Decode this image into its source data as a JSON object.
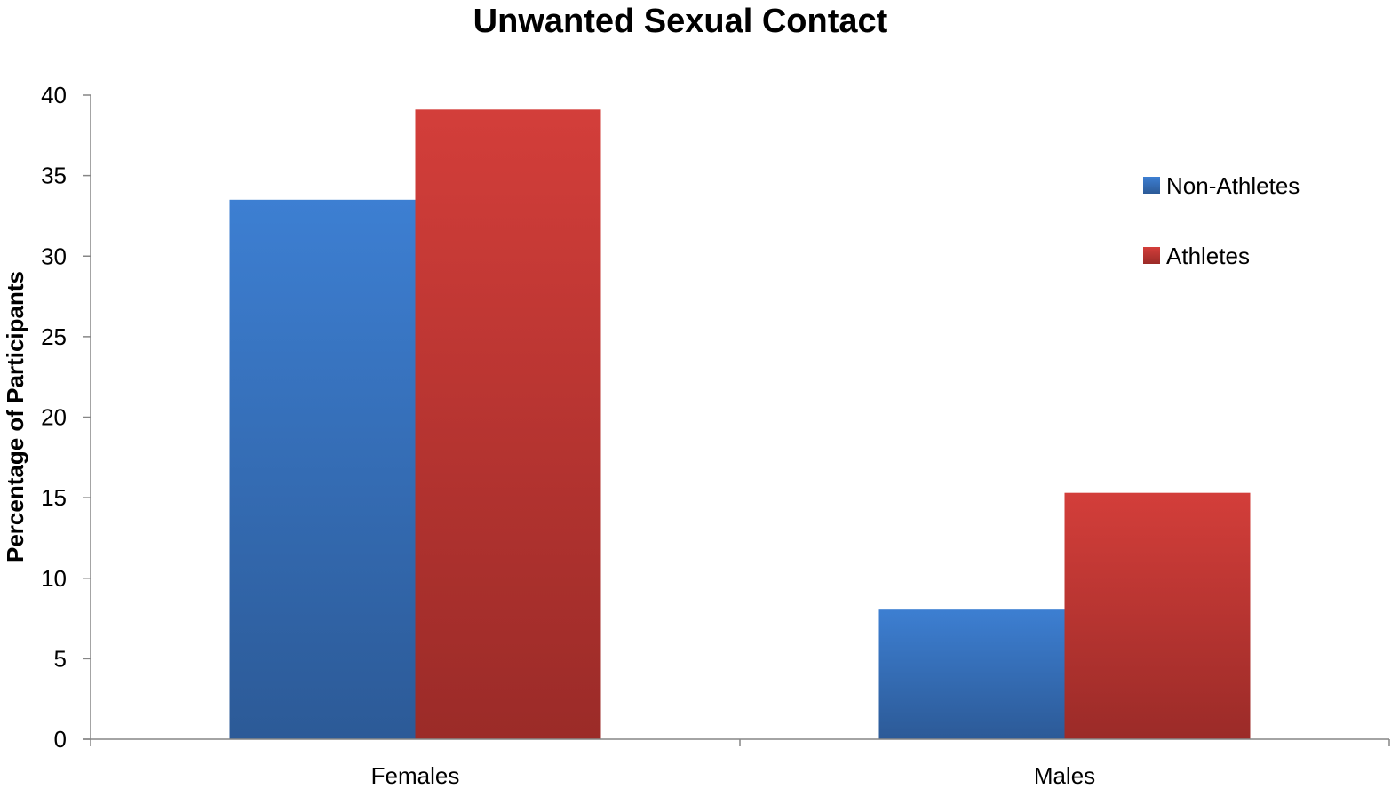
{
  "chart_data": {
    "type": "bar",
    "title": "Unwanted Sexual Contact",
    "xlabel": "",
    "ylabel": "Percentage of Participants",
    "categories": [
      "Females",
      "Males"
    ],
    "series": [
      {
        "name": "Non-Athletes",
        "values": [
          33.5,
          8.1
        ],
        "color": "#3a78c8"
      },
      {
        "name": "Athletes",
        "values": [
          39.1,
          15.3
        ],
        "color": "#c93a36"
      }
    ],
    "ylim": [
      0,
      40
    ],
    "yticks": [
      "0",
      "5",
      "10",
      "15",
      "20",
      "25",
      "30",
      "35",
      "40"
    ],
    "grid": false,
    "legend_position": "right"
  }
}
